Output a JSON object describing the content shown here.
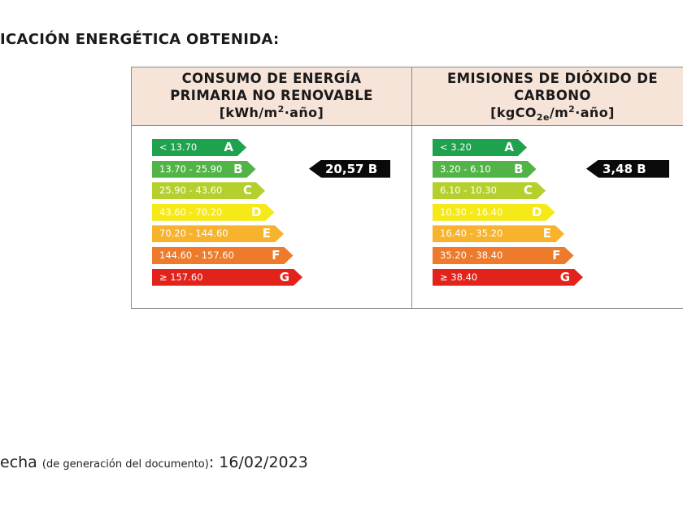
{
  "heading": "ICACIÓN ENERGÉTICA OBTENIDA:",
  "colors": {
    "header_bg": "#f7e4d8",
    "A": "#1ea24d",
    "B": "#52b447",
    "C": "#b5cf2d",
    "D": "#f6e918",
    "E": "#f7b32d",
    "F": "#ed7b2b",
    "G": "#e2231c",
    "indicator": "#0a0a0a"
  },
  "consumo": {
    "title_line1": "CONSUMO DE ENERGÍA",
    "title_line2": "PRIMARIA NO RENOVABLE",
    "unit_prefix": "[kWh/m",
    "unit_sup": "2",
    "unit_suffix": "·año]",
    "rating_value": "20,57",
    "rating_letter": "B",
    "rating_class_index": 1,
    "bars": [
      {
        "range": "< 13.70",
        "letter": "A"
      },
      {
        "range": "13.70 - 25.90",
        "letter": "B"
      },
      {
        "range": "25.90 - 43.60",
        "letter": "C"
      },
      {
        "range": "43.60 - 70.20",
        "letter": "D"
      },
      {
        "range": "70.20 - 144.60",
        "letter": "E"
      },
      {
        "range": "144.60 - 157.60",
        "letter": "F"
      },
      {
        "range": "≥ 157.60",
        "letter": "G"
      }
    ]
  },
  "emisiones": {
    "title_line1": "EMISIONES DE DIÓXIDO DE",
    "title_line2": "CARBONO",
    "unit_prefix": "[kgCO",
    "unit_sub": "2e",
    "unit_mid": "/m",
    "unit_sup": "2",
    "unit_suffix": "·año]",
    "rating_value": "3,48",
    "rating_letter": "B",
    "rating_class_index": 1,
    "bars": [
      {
        "range": "< 3.20",
        "letter": "A"
      },
      {
        "range": "3.20 - 6.10",
        "letter": "B"
      },
      {
        "range": "6.10 - 10.30",
        "letter": "C"
      },
      {
        "range": "10.30 - 16.40",
        "letter": "D"
      },
      {
        "range": "16.40 - 35.20",
        "letter": "E"
      },
      {
        "range": "35.20 - 38.40",
        "letter": "F"
      },
      {
        "range": "≥ 38.40",
        "letter": "G"
      }
    ]
  },
  "footer": {
    "label": "echa",
    "note": "(de generación del documento)",
    "colon": ":",
    "date": "16/02/2023"
  }
}
